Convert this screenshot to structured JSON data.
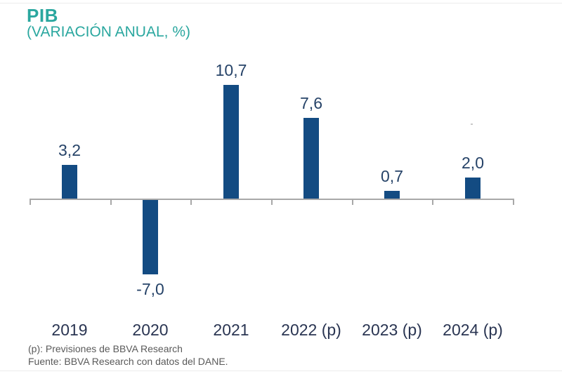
{
  "header": {
    "title": "PIB",
    "subtitle": "(VARIACIÓN ANUAL, %)",
    "title_color": "#2aa79f"
  },
  "chart_data": {
    "type": "bar",
    "title": "PIB",
    "subtitle": "(VARIACIÓN ANUAL, %)",
    "categories": [
      "2019",
      "2020",
      "2021",
      "2022 (p)",
      "2023 (p)",
      "2024 (p)"
    ],
    "values": [
      3.2,
      -7.0,
      10.7,
      7.6,
      0.7,
      2.0
    ],
    "value_labels": [
      "3,2",
      "-7,0",
      "10,7",
      "7,6",
      "0,7",
      "2,0"
    ],
    "ylim": [
      -8,
      11
    ],
    "grid": false,
    "legend": false,
    "xlabel": "",
    "ylabel": "",
    "bar_color": "#134b82",
    "value_label_color": "#264368",
    "category_label_color": "#2a3552",
    "axis_color": "#a8a8a8"
  },
  "footer": {
    "line1": "(p): Previsiones de BBVA Research",
    "line2": "Fuente: BBVA Research con datos del DANE.",
    "color": "#5a5a5a"
  }
}
